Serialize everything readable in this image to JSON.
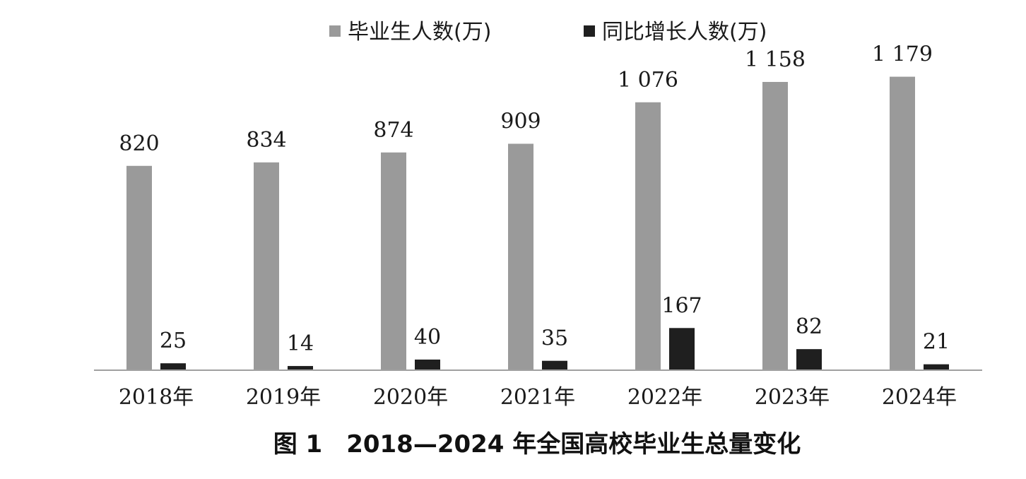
{
  "chart_data": {
    "type": "bar",
    "categories": [
      "2018年",
      "2019年",
      "2020年",
      "2021年",
      "2022年",
      "2023年",
      "2024年"
    ],
    "series": [
      {
        "name": "毕业生人数(万)",
        "values": [
          820,
          834,
          874,
          909,
          1076,
          1158,
          1179
        ],
        "labels": [
          "820",
          "834",
          "874",
          "909",
          "1 076",
          "1 158",
          "1 179"
        ],
        "color": "#9a9a9a"
      },
      {
        "name": "同比增长人数(万)",
        "values": [
          25,
          14,
          40,
          35,
          167,
          82,
          21
        ],
        "labels": [
          "25",
          "14",
          "40",
          "35",
          "167",
          "82",
          "21"
        ],
        "color": "#1f1f1f"
      }
    ],
    "caption": "图 1　2018—2024 年全国高校毕业生总量变化",
    "legend_position": "top",
    "grid": false,
    "ylim": [
      0,
      1300
    ]
  }
}
